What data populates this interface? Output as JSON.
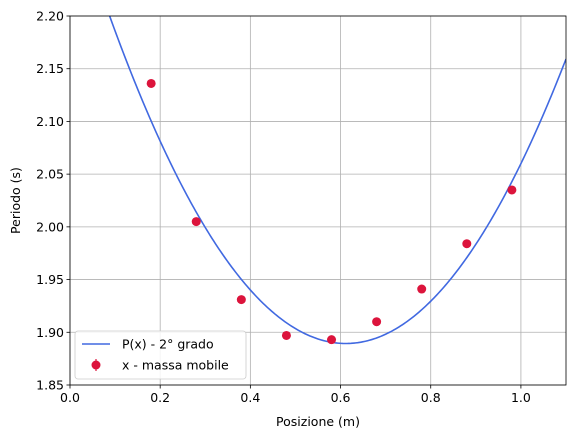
{
  "chart_data": {
    "type": "scatter",
    "xlabel": "Posizione (m)",
    "ylabel": "Periodo (s)",
    "xlim": [
      0.0,
      1.1
    ],
    "ylim": [
      1.85,
      2.2
    ],
    "xticks": [
      "0.0",
      "0.2",
      "0.4",
      "0.6",
      "0.8",
      "1.0"
    ],
    "yticks": [
      "1.85",
      "1.90",
      "1.95",
      "2.00",
      "2.05",
      "2.10",
      "2.15",
      "2.20"
    ],
    "grid": true,
    "legend_position": "lower-left",
    "series": [
      {
        "name": "x - massa mobile",
        "kind": "points-with-errorbars",
        "color": "#dc143c",
        "points": [
          {
            "x": 0.18,
            "y": 2.136
          },
          {
            "x": 0.28,
            "y": 2.005
          },
          {
            "x": 0.38,
            "y": 1.931
          },
          {
            "x": 0.48,
            "y": 1.897
          },
          {
            "x": 0.58,
            "y": 1.893
          },
          {
            "x": 0.68,
            "y": 1.91
          },
          {
            "x": 0.78,
            "y": 1.941
          },
          {
            "x": 0.88,
            "y": 1.984
          },
          {
            "x": 0.98,
            "y": 2.035
          }
        ]
      },
      {
        "name": "P(x) - 2° grado",
        "kind": "curve",
        "color": "#4169e1",
        "coefficients": {
          "a": 1.132,
          "b": -1.385,
          "c": 2.313
        }
      }
    ]
  }
}
